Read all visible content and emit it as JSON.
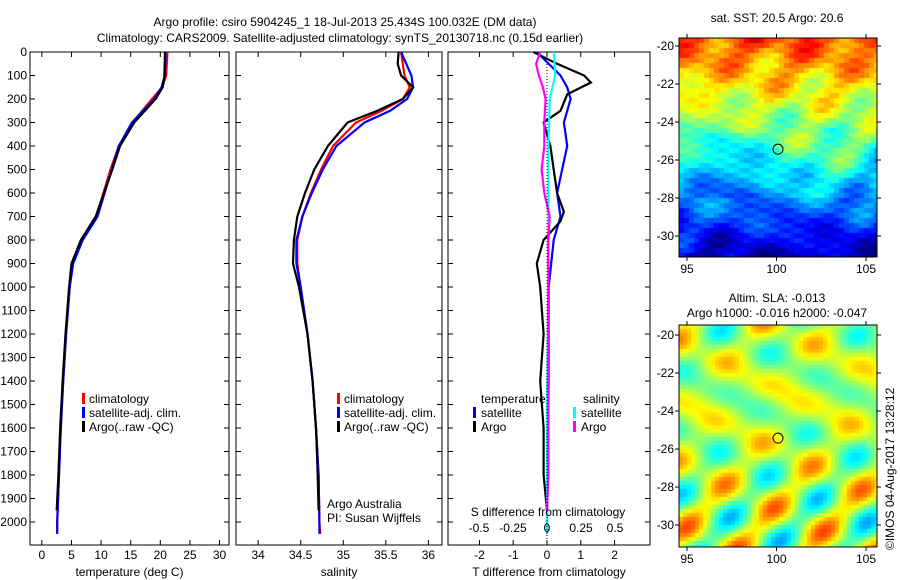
{
  "title_line1": "Argo profile: csiro 5904245_1 18-Jul-2013 25.434S 100.032E (DM data)",
  "title_line2": "Climatology: CARS2009. Satellite-adjusted climatology: synTS_20130718.nc (0.15d earlier)",
  "colors": {
    "climatology": "#ff0000",
    "satellite": "#0000ff",
    "argo": "#000000",
    "sal_satellite": "#00ffff",
    "sal_argo": "#ff00ff"
  },
  "legend": {
    "climatology": "climatology",
    "satellite": "satellite-adj. clim.",
    "argo": "Argo(..raw -QC)"
  },
  "diff_legend": {
    "temperature": "temperature",
    "salinity": "salinity",
    "satellite": "satellite",
    "argo": "Argo"
  },
  "credit": {
    "line1": "Argo Australia",
    "line2": "PI: Susan Wijffels"
  },
  "map1": {
    "title": "sat. SST: 20.5 Argo: 20.6",
    "lon_ticks": [
      "95",
      "100",
      "105"
    ],
    "lat_ticks": [
      "-20",
      "-22",
      "-24",
      "-26",
      "-28",
      "-30"
    ]
  },
  "map2": {
    "title1": "Altim. SLA: -0.013",
    "title2": "Argo h1000: -0.016 h2000: -0.047",
    "lon_ticks": [
      "95",
      "100",
      "105"
    ],
    "lat_ticks": [
      "-20",
      "-22",
      "-24",
      "-26",
      "-28",
      "-30"
    ]
  },
  "footer": "©IMOS 04-Aug-2017 13:28:12",
  "chart_data": [
    {
      "type": "line",
      "xlabel": "temperature (deg C)",
      "ylabel": "",
      "xlim": [
        -2,
        31.6
      ],
      "ylim": [
        2100,
        0
      ],
      "xticks": [
        "0",
        "5",
        "10",
        "15",
        "20",
        "25",
        "30"
      ],
      "yticks": [
        "0",
        "100",
        "200",
        "300",
        "400",
        "500",
        "600",
        "700",
        "800",
        "900",
        "1000",
        "1100",
        "1200",
        "1300",
        "1400",
        "1500",
        "1600",
        "1700",
        "1800",
        "1900",
        "2000"
      ],
      "series": [
        {
          "name": "climatology",
          "depth": [
            0,
            100,
            150,
            200,
            300,
            400,
            500,
            600,
            700,
            800,
            900,
            1000,
            1200,
            1400,
            1600,
            1800,
            2000,
            2050
          ],
          "values": [
            21.2,
            21,
            20.3,
            18.6,
            15.3,
            13,
            11.6,
            10.4,
            9.2,
            6.8,
            5.2,
            4.7,
            4.1,
            3.6,
            3.2,
            2.9,
            2.6,
            2.6
          ]
        },
        {
          "name": "satellite-adj. clim.",
          "depth": [
            0,
            100,
            150,
            200,
            300,
            400,
            500,
            600,
            700,
            800,
            900,
            1000,
            1200,
            1400,
            1600,
            1800,
            2000,
            2050
          ],
          "values": [
            20.9,
            20.8,
            20.2,
            19,
            15.2,
            13,
            11.8,
            10.6,
            9.4,
            6.9,
            5.3,
            4.7,
            4.1,
            3.6,
            3.2,
            2.9,
            2.6,
            2.6
          ]
        },
        {
          "name": "Argo(..raw -QC)",
          "depth": [
            0,
            100,
            150,
            200,
            300,
            400,
            500,
            600,
            700,
            800,
            900,
            1000,
            1200,
            1400,
            1600,
            1800,
            1950
          ],
          "values": [
            20.8,
            20.7,
            20.4,
            19.2,
            15.6,
            13.2,
            11.9,
            10.5,
            9.1,
            6.6,
            5,
            4.6,
            4,
            3.5,
            3.1,
            2.8,
            2.5
          ]
        }
      ]
    },
    {
      "type": "line",
      "xlabel": "salinity",
      "xlim": [
        33.74,
        36.16
      ],
      "ylim": [
        2100,
        0
      ],
      "xticks": [
        "34",
        "34.5",
        "35",
        "35.5",
        "36"
      ],
      "series": [
        {
          "name": "climatology",
          "depth": [
            0,
            100,
            150,
            200,
            250,
            300,
            400,
            500,
            600,
            700,
            800,
            900,
            1000,
            1200,
            1400,
            1600,
            1800,
            2000,
            2050
          ],
          "values": [
            35.68,
            35.72,
            35.78,
            35.7,
            35.45,
            35.15,
            34.88,
            34.74,
            34.62,
            34.52,
            34.46,
            34.46,
            34.5,
            34.58,
            34.64,
            34.68,
            34.71,
            34.72,
            34.73
          ]
        },
        {
          "name": "satellite-adj. clim.",
          "depth": [
            0,
            100,
            150,
            200,
            250,
            300,
            400,
            500,
            600,
            700,
            800,
            900,
            1000,
            1200,
            1400,
            1600,
            1800,
            2000,
            2050
          ],
          "values": [
            35.68,
            35.8,
            35.82,
            35.75,
            35.55,
            35.25,
            34.92,
            34.76,
            34.63,
            34.52,
            34.45,
            34.45,
            34.5,
            34.58,
            34.64,
            34.68,
            34.71,
            34.72,
            34.72
          ]
        },
        {
          "name": "Argo(..raw -QC)",
          "depth": [
            0,
            50,
            100,
            150,
            200,
            250,
            300,
            400,
            500,
            600,
            700,
            800,
            900,
            1000,
            1200,
            1400,
            1600,
            1800,
            1950
          ],
          "values": [
            35.65,
            35.64,
            35.68,
            35.82,
            35.7,
            35.4,
            35.05,
            34.82,
            34.66,
            34.55,
            34.46,
            34.42,
            34.41,
            34.48,
            34.58,
            34.64,
            34.68,
            34.7,
            34.71
          ]
        }
      ]
    },
    {
      "type": "line",
      "xlabel": "T difference from climatology",
      "xlabel2": "S difference from climatology",
      "xlim": [
        -2.93,
        3.05
      ],
      "ylim": [
        2100,
        0
      ],
      "xticks": [
        "-2",
        "-1",
        "0",
        "1",
        "2"
      ],
      "xticks2": [
        "-0.5",
        "-0.25",
        "0",
        "0.25",
        "0.5"
      ],
      "series": [
        {
          "name": "temperature satellite",
          "depth": [
            0,
            100,
            150,
            200,
            300,
            400,
            600,
            700,
            800,
            1000,
            1400,
            2000,
            2050
          ],
          "values": [
            -0.3,
            0.4,
            0.6,
            0.7,
            0.5,
            0.6,
            0.3,
            0.4,
            0.2,
            0.05,
            0.05,
            0,
            0
          ]
        },
        {
          "name": "temperature Argo",
          "depth": [
            0,
            50,
            100,
            130,
            180,
            250,
            300,
            400,
            500,
            600,
            680,
            720,
            800,
            900,
            1000,
            1200,
            1400,
            1600,
            1800,
            1950
          ],
          "values": [
            -0.4,
            0.3,
            1.1,
            1.3,
            0.6,
            0.4,
            -0.1,
            0.1,
            0.2,
            0.3,
            0.5,
            0.4,
            -0.1,
            -0.3,
            -0.2,
            -0.1,
            -0.2,
            -0.1,
            -0.1,
            0
          ]
        },
        {
          "name": "salinity satellite",
          "depth": [
            0,
            100,
            200,
            400,
            600,
            1000,
            1500,
            2000,
            2050
          ],
          "values": [
            0.05,
            0.06,
            0.02,
            0.01,
            0.01,
            0.01,
            0,
            0,
            0
          ]
        },
        {
          "name": "salinity Argo",
          "depth": [
            0,
            50,
            100,
            150,
            200,
            300,
            400,
            500,
            600,
            700,
            800,
            900,
            1000,
            1400,
            1800,
            1950
          ],
          "values": [
            -0.05,
            -0.08,
            -0.06,
            -0.03,
            -0.01,
            -0.02,
            -0.02,
            -0.04,
            -0.02,
            0.02,
            0.01,
            0.01,
            0.01,
            0.01,
            0.01,
            0
          ]
        }
      ]
    }
  ]
}
